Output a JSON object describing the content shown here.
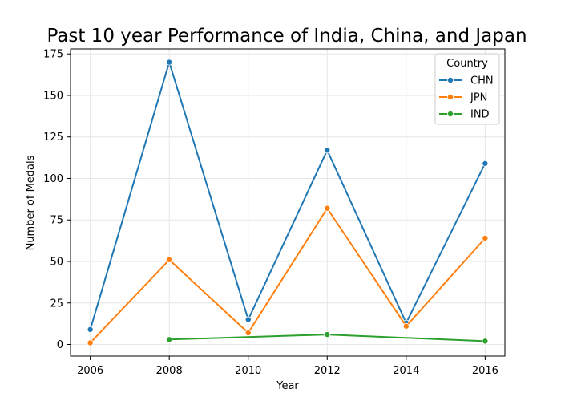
{
  "chart_data": {
    "type": "line",
    "title": "Past 10 year Performance of India, China, and Japan",
    "xlabel": "Year",
    "ylabel": "Number of Medals",
    "x_ticks": [
      2006,
      2008,
      2010,
      2012,
      2014,
      2016
    ],
    "y_ticks": [
      0,
      25,
      50,
      75,
      100,
      125,
      150,
      175
    ],
    "xlim": [
      2005.5,
      2016.5
    ],
    "ylim": [
      -7,
      178
    ],
    "grid": true,
    "legend": {
      "title": "Country",
      "placement": "top-right"
    },
    "series": [
      {
        "name": "CHN",
        "color": "#1f77b4",
        "x": [
          2006,
          2008,
          2010,
          2012,
          2014,
          2016
        ],
        "values": [
          9,
          170,
          15,
          117,
          13,
          109
        ]
      },
      {
        "name": "JPN",
        "color": "#ff7f0e",
        "x": [
          2006,
          2008,
          2010,
          2012,
          2014,
          2016
        ],
        "values": [
          1,
          51,
          7,
          82,
          11,
          64
        ]
      },
      {
        "name": "IND",
        "color": "#2ca02c",
        "x": [
          2008,
          2012,
          2016
        ],
        "values": [
          3,
          6,
          2
        ]
      }
    ]
  }
}
